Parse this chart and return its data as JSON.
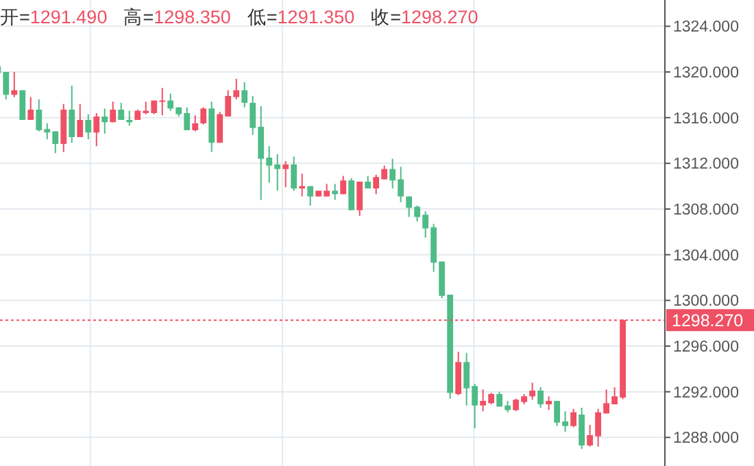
{
  "chart_data": {
    "type": "candlestick",
    "categories": [
      null,
      null,
      null,
      null,
      null,
      null,
      null,
      null,
      null,
      null,
      null,
      null,
      null,
      null,
      null,
      null,
      null,
      null,
      null,
      null,
      null,
      null,
      null,
      null,
      null,
      null,
      null,
      null,
      null,
      null,
      null,
      null,
      null,
      null,
      null,
      null,
      null,
      null,
      null,
      null,
      null,
      null,
      null,
      null,
      null,
      null,
      null,
      null,
      null,
      null,
      null,
      null,
      null,
      null,
      null,
      null,
      null,
      null,
      null,
      null,
      null,
      null,
      null,
      null,
      null,
      null,
      null,
      null,
      null,
      null,
      null,
      null,
      null,
      null,
      null,
      null,
      null
    ],
    "ohlc": [
      [
        1320.5,
        1320.6,
        1319.8,
        1319.9
      ],
      [
        1320.0,
        1320.0,
        1317.6,
        1318.0
      ],
      [
        1318.0,
        1320.0,
        1317.8,
        1318.4
      ],
      [
        1318.4,
        1318.4,
        1315.8,
        1315.8
      ],
      [
        1315.8,
        1317.8,
        1315.8,
        1316.7
      ],
      [
        1316.7,
        1317.6,
        1314.8,
        1314.9
      ],
      [
        1315.0,
        1315.5,
        1314.1,
        1314.7
      ],
      [
        1314.8,
        1314.8,
        1312.9,
        1313.7
      ],
      [
        1313.7,
        1317.2,
        1313.0,
        1316.7
      ],
      [
        1316.7,
        1318.8,
        1313.8,
        1314.3
      ],
      [
        1314.3,
        1317.2,
        1314.3,
        1315.8
      ],
      [
        1315.8,
        1316.3,
        1314.1,
        1314.7
      ],
      [
        1314.7,
        1316.4,
        1313.5,
        1316.1
      ],
      [
        1316.1,
        1316.8,
        1314.6,
        1315.6
      ],
      [
        1315.6,
        1317.4,
        1315.6,
        1316.7
      ],
      [
        1316.7,
        1317.3,
        1315.8,
        1315.8
      ],
      [
        1315.8,
        1316.6,
        1315.3,
        1315.6
      ],
      [
        1315.8,
        1316.7,
        1315.8,
        1316.6
      ],
      [
        1316.4,
        1317.4,
        1316.3,
        1316.6
      ],
      [
        1316.4,
        1317.5,
        1316.3,
        1317.5
      ],
      [
        1317.4,
        1318.6,
        1316.2,
        1317.5
      ],
      [
        1317.5,
        1318.1,
        1316.6,
        1316.8
      ],
      [
        1316.9,
        1316.9,
        1316.1,
        1316.3
      ],
      [
        1316.4,
        1316.9,
        1314.9,
        1314.9
      ],
      [
        1314.9,
        1316.2,
        1314.8,
        1315.5
      ],
      [
        1315.5,
        1316.9,
        1315.4,
        1316.8
      ],
      [
        1316.8,
        1317.4,
        1313.0,
        1313.8
      ],
      [
        1313.8,
        1316.5,
        1313.8,
        1316.3
      ],
      [
        1316.1,
        1318.4,
        1316.1,
        1317.9
      ],
      [
        1317.8,
        1319.4,
        1317.6,
        1318.4
      ],
      [
        1318.4,
        1319.1,
        1316.9,
        1317.3
      ],
      [
        1317.3,
        1317.9,
        1314.5,
        1315.1
      ],
      [
        1315.2,
        1317.0,
        1308.8,
        1312.4
      ],
      [
        1312.5,
        1313.5,
        1310.3,
        1311.8
      ],
      [
        1311.9,
        1312.8,
        1309.6,
        1311.5
      ],
      [
        1311.5,
        1312.2,
        1309.9,
        1311.9
      ],
      [
        1311.9,
        1312.6,
        1309.6,
        1309.8
      ],
      [
        1309.8,
        1311.1,
        1309.1,
        1310.0
      ],
      [
        1310.0,
        1310.0,
        1308.3,
        1309.1
      ],
      [
        1309.1,
        1309.6,
        1309.1,
        1309.6
      ],
      [
        1309.1,
        1310.2,
        1309.1,
        1309.6
      ],
      [
        1309.6,
        1310.2,
        1308.8,
        1309.3
      ],
      [
        1309.3,
        1310.9,
        1309.3,
        1310.5
      ],
      [
        1310.5,
        1310.7,
        1307.9,
        1307.9
      ],
      [
        1307.9,
        1310.4,
        1307.4,
        1310.4
      ],
      [
        1310.4,
        1310.9,
        1309.8,
        1309.8
      ],
      [
        1309.8,
        1311.0,
        1309.3,
        1310.8
      ],
      [
        1310.6,
        1311.8,
        1310.6,
        1311.5
      ],
      [
        1311.5,
        1312.4,
        1309.8,
        1310.5
      ],
      [
        1310.6,
        1311.7,
        1308.6,
        1309.1
      ],
      [
        1309.1,
        1309.1,
        1307.3,
        1308.1
      ],
      [
        1308.2,
        1308.3,
        1306.9,
        1307.3
      ],
      [
        1307.5,
        1307.8,
        1305.5,
        1306.3
      ],
      [
        1306.4,
        1306.7,
        1302.5,
        1303.3
      ],
      [
        1303.4,
        1303.4,
        1300.2,
        1300.4
      ],
      [
        1300.5,
        1300.5,
        1291.4,
        1291.9
      ],
      [
        1291.8,
        1295.5,
        1291.7,
        1294.6
      ],
      [
        1294.6,
        1295.4,
        1290.8,
        1292.3
      ],
      [
        1292.5,
        1292.7,
        1288.8,
        1290.8
      ],
      [
        1290.8,
        1292.2,
        1290.3,
        1291.2
      ],
      [
        1291.0,
        1291.9,
        1290.9,
        1291.8
      ],
      [
        1291.8,
        1292.0,
        1290.7,
        1290.7
      ],
      [
        1290.8,
        1291.2,
        1290.2,
        1290.4
      ],
      [
        1290.4,
        1291.4,
        1290.3,
        1291.3
      ],
      [
        1291.1,
        1291.8,
        1290.9,
        1291.6
      ],
      [
        1291.6,
        1292.8,
        1291.3,
        1292.1
      ],
      [
        1292.1,
        1292.4,
        1290.6,
        1290.9
      ],
      [
        1290.9,
        1291.6,
        1290.4,
        1291.2
      ],
      [
        1291.2,
        1291.2,
        1289.0,
        1289.3
      ],
      [
        1289.4,
        1290.3,
        1288.5,
        1289.0
      ],
      [
        1289.0,
        1290.5,
        1288.9,
        1290.2
      ],
      [
        1290.0,
        1290.6,
        1287.0,
        1287.3
      ],
      [
        1287.3,
        1289.1,
        1287.2,
        1288.2
      ],
      [
        1288.1,
        1290.5,
        1287.2,
        1290.2
      ],
      [
        1290.1,
        1292.2,
        1290.1,
        1291.0
      ],
      [
        1290.9,
        1292.4,
        1290.9,
        1291.6
      ],
      [
        1291.49,
        1298.35,
        1291.35,
        1298.27
      ]
    ],
    "colors": [
      "#4fbb87",
      "#4fbb87",
      "#ef5064",
      "#4fbb87",
      "#ef5064",
      "#4fbb87",
      "#4fbb87",
      "#4fbb87",
      "#ef5064",
      "#4fbb87",
      "#ef5064",
      "#4fbb87",
      "#ef5064",
      "#4fbb87",
      "#ef5064",
      "#4fbb87",
      "#4fbb87",
      "#ef5064",
      "#ef5064",
      "#ef5064",
      "#ef5064",
      "#4fbb87",
      "#4fbb87",
      "#4fbb87",
      "#ef5064",
      "#ef5064",
      "#4fbb87",
      "#ef5064",
      "#ef5064",
      "#ef5064",
      "#4fbb87",
      "#4fbb87",
      "#4fbb87",
      "#4fbb87",
      "#4fbb87",
      "#ef5064",
      "#4fbb87",
      "#ef5064",
      "#4fbb87",
      "#ef5064",
      "#ef5064",
      "#4fbb87",
      "#ef5064",
      "#4fbb87",
      "#ef5064",
      "#4fbb87",
      "#ef5064",
      "#ef5064",
      "#4fbb87",
      "#4fbb87",
      "#4fbb87",
      "#4fbb87",
      "#4fbb87",
      "#4fbb87",
      "#4fbb87",
      "#4fbb87",
      "#ef5064",
      "#4fbb87",
      "#4fbb87",
      "#ef5064",
      "#ef5064",
      "#4fbb87",
      "#4fbb87",
      "#ef5064",
      "#ef5064",
      "#ef5064",
      "#4fbb87",
      "#ef5064",
      "#4fbb87",
      "#4fbb87",
      "#ef5064",
      "#4fbb87",
      "#ef5064",
      "#ef5064",
      "#ef5064",
      "#ef5064",
      "#ef5064"
    ],
    "ylim": [
      1285.5,
      1326.3
    ],
    "yticks": [
      {
        "value": 1288,
        "label": "1288.000"
      },
      {
        "value": 1292,
        "label": "1292.000"
      },
      {
        "value": 1296,
        "label": "1296.000"
      },
      {
        "value": 1300,
        "label": "1300.000"
      },
      {
        "value": 1304,
        "label": "1304.000"
      },
      {
        "value": 1308,
        "label": "1308.000"
      },
      {
        "value": 1312,
        "label": "1312.000"
      },
      {
        "value": 1316,
        "label": "1316.000"
      },
      {
        "value": 1320,
        "label": "1320.000"
      },
      {
        "value": 1324,
        "label": "1324.000"
      }
    ],
    "ref_lines": [
      {
        "axis": "y",
        "value": 1298.27,
        "label": "1298.270",
        "color": "#ef5064",
        "line_style": "dotted"
      }
    ],
    "annotations": [
      "开=1291.490",
      "高=1298.350",
      "低=1291.350",
      "收=1298.270"
    ],
    "grid": true
  }
}
